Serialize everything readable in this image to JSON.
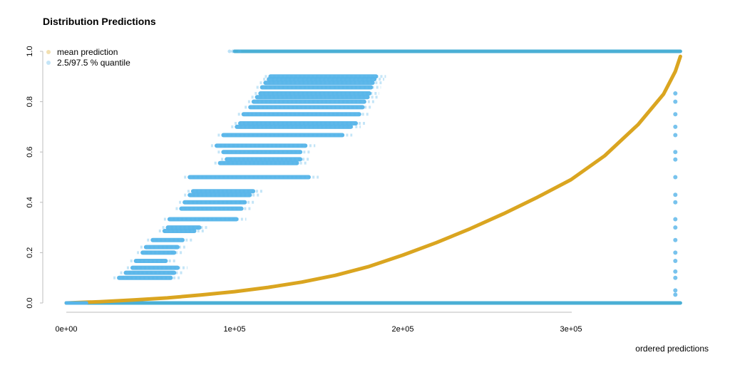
{
  "chart_data": {
    "type": "scatter",
    "title": "Distribution Predictions",
    "xlabel": "ordered predictions",
    "ylabel": "",
    "xlim": [
      0,
      370000
    ],
    "ylim": [
      0,
      1
    ],
    "grid": false,
    "legend_position": "top-left",
    "x_ticks": [
      {
        "value": 0,
        "label": "0e+00"
      },
      {
        "value": 100000,
        "label": "1e+05"
      },
      {
        "value": 200000,
        "label": "2e+05"
      },
      {
        "value": 300000,
        "label": "3e+05"
      }
    ],
    "y_ticks": [
      {
        "value": 0,
        "label": "0.0"
      },
      {
        "value": 0.2,
        "label": "0.2"
      },
      {
        "value": 0.4,
        "label": "0.4"
      },
      {
        "value": 0.6,
        "label": "0.6"
      },
      {
        "value": 0.8,
        "label": "0.8"
      },
      {
        "value": 1.0,
        "label": "1.0"
      }
    ],
    "series": [
      {
        "name": "mean prediction",
        "color": "#DAA520",
        "kind": "curve",
        "x": [
          0,
          20000,
          40000,
          60000,
          80000,
          100000,
          120000,
          140000,
          160000,
          180000,
          200000,
          220000,
          240000,
          260000,
          280000,
          300000,
          320000,
          340000,
          355000,
          362000,
          365000
        ],
        "y": [
          0.0,
          0.005,
          0.012,
          0.02,
          0.032,
          0.045,
          0.062,
          0.083,
          0.11,
          0.145,
          0.19,
          0.24,
          0.295,
          0.355,
          0.42,
          0.49,
          0.585,
          0.71,
          0.83,
          0.92,
          0.98
        ]
      },
      {
        "name": "2.5/97.5 % quantile",
        "color": "#56B4E9",
        "kind": "bands",
        "lines": [
          {
            "y": 1.0,
            "x_start": 100000,
            "x_end": 365000
          },
          {
            "y": 0.0,
            "x_start": 0,
            "x_end": 365000
          }
        ],
        "bands": [
          {
            "y": 0.1,
            "x_start": 28000,
            "x_end": 68000
          },
          {
            "y": 0.12,
            "x_start": 32000,
            "x_end": 70000
          },
          {
            "y": 0.14,
            "x_start": 36000,
            "x_end": 72000
          },
          {
            "y": 0.167,
            "x_start": 38000,
            "x_end": 65000
          },
          {
            "y": 0.2,
            "x_start": 42000,
            "x_end": 70000
          },
          {
            "y": 0.222,
            "x_start": 44000,
            "x_end": 72000
          },
          {
            "y": 0.25,
            "x_start": 48000,
            "x_end": 75000
          },
          {
            "y": 0.286,
            "x_start": 55000,
            "x_end": 82000
          },
          {
            "y": 0.3,
            "x_start": 57000,
            "x_end": 85000
          },
          {
            "y": 0.333,
            "x_start": 58000,
            "x_end": 107000
          },
          {
            "y": 0.375,
            "x_start": 65000,
            "x_end": 110000
          },
          {
            "y": 0.4,
            "x_start": 67000,
            "x_end": 112000
          },
          {
            "y": 0.429,
            "x_start": 70000,
            "x_end": 115000
          },
          {
            "y": 0.444,
            "x_start": 72000,
            "x_end": 117000
          },
          {
            "y": 0.5,
            "x_start": 70000,
            "x_end": 150000
          },
          {
            "y": 0.556,
            "x_start": 88000,
            "x_end": 143000
          },
          {
            "y": 0.571,
            "x_start": 92000,
            "x_end": 145000
          },
          {
            "y": 0.6,
            "x_start": 90000,
            "x_end": 145000
          },
          {
            "y": 0.625,
            "x_start": 86000,
            "x_end": 148000
          },
          {
            "y": 0.667,
            "x_start": 90000,
            "x_end": 170000
          },
          {
            "y": 0.7,
            "x_start": 98000,
            "x_end": 175000
          },
          {
            "y": 0.714,
            "x_start": 100000,
            "x_end": 178000
          },
          {
            "y": 0.75,
            "x_start": 102000,
            "x_end": 180000
          },
          {
            "y": 0.778,
            "x_start": 106000,
            "x_end": 182000
          },
          {
            "y": 0.8,
            "x_start": 108000,
            "x_end": 183000
          },
          {
            "y": 0.818,
            "x_start": 110000,
            "x_end": 185000
          },
          {
            "y": 0.833,
            "x_start": 112000,
            "x_end": 186000
          },
          {
            "y": 0.857,
            "x_start": 113000,
            "x_end": 187000
          },
          {
            "y": 0.875,
            "x_start": 115000,
            "x_end": 188000
          },
          {
            "y": 0.889,
            "x_start": 117000,
            "x_end": 189000
          },
          {
            "y": 0.9,
            "x_start": 118000,
            "x_end": 190000
          }
        ],
        "upper_tail": [
          {
            "x": 362000,
            "y": 0.033
          },
          {
            "x": 362000,
            "y": 0.05
          },
          {
            "x": 362000,
            "y": 0.1
          },
          {
            "x": 362000,
            "y": 0.125
          },
          {
            "x": 362000,
            "y": 0.167
          },
          {
            "x": 362000,
            "y": 0.2
          },
          {
            "x": 362000,
            "y": 0.25
          },
          {
            "x": 362000,
            "y": 0.3
          },
          {
            "x": 362000,
            "y": 0.333
          },
          {
            "x": 362000,
            "y": 0.4
          },
          {
            "x": 362000,
            "y": 0.43
          },
          {
            "x": 362000,
            "y": 0.5
          },
          {
            "x": 362000,
            "y": 0.57
          },
          {
            "x": 362000,
            "y": 0.6
          },
          {
            "x": 362000,
            "y": 0.667
          },
          {
            "x": 362000,
            "y": 0.7
          },
          {
            "x": 362000,
            "y": 0.75
          },
          {
            "x": 362000,
            "y": 0.8
          },
          {
            "x": 362000,
            "y": 0.833
          }
        ]
      }
    ]
  }
}
